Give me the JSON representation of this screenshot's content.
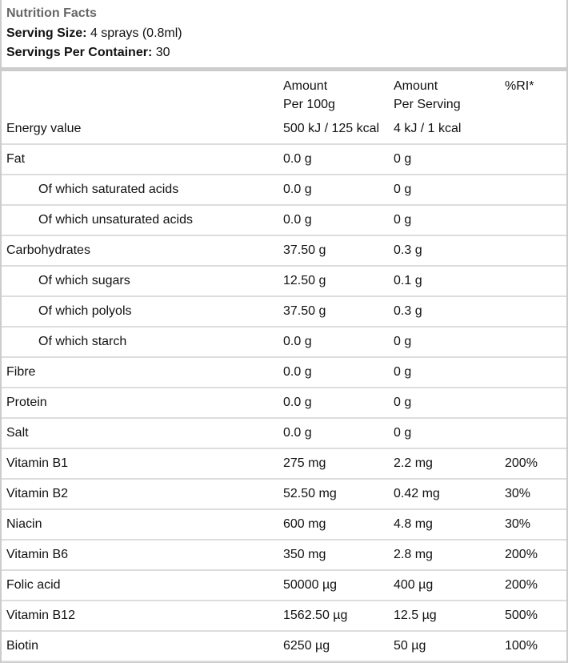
{
  "header": {
    "title": "Nutrition Facts",
    "serving_size_label": "Serving Size:",
    "serving_size": "4 sprays (0.8ml)",
    "servings_label": "Servings Per Container:",
    "servings": "30"
  },
  "table": {
    "columns": [
      [
        "Amount",
        "Per 100g"
      ],
      [
        "Amount",
        "Per Serving"
      ],
      [
        "%RI*"
      ]
    ],
    "rows": [
      {
        "label": "Energy value",
        "per_100g": "500 kJ / 125 kcal",
        "per_serving": "4 kJ / 1 kcal"
      },
      {
        "label": "Fat",
        "per_100g": "0.0 g",
        "per_serving": "0 g"
      },
      {
        "label": "Of which saturated acids",
        "per_100g": "0.0 g",
        "per_serving": "0 g",
        "indent": true
      },
      {
        "label": "Of which unsaturated acids",
        "per_100g": "0.0 g",
        "per_serving": "0 g",
        "indent": true
      },
      {
        "label": "Carbohydrates",
        "per_100g": "37.50 g",
        "per_serving": "0.3 g"
      },
      {
        "label": "Of which sugars",
        "per_100g": "12.50 g",
        "per_serving": "0.1 g",
        "indent": true
      },
      {
        "label": "Of which polyols",
        "per_100g": "37.50 g",
        "per_serving": "0.3 g",
        "indent": true
      },
      {
        "label": "Of which starch",
        "per_100g": "0.0 g",
        "per_serving": "0 g",
        "indent": true
      },
      {
        "label": "Fibre",
        "per_100g": "0.0 g",
        "per_serving": "0 g"
      },
      {
        "label": "Protein",
        "per_100g": "0.0 g",
        "per_serving": "0 g"
      },
      {
        "label": "Salt",
        "per_100g": "0.0 g",
        "per_serving": "0 g"
      },
      {
        "label": "Vitamin B1",
        "per_100g": "275 mg",
        "per_serving": "2.2 mg",
        "ri": "200%"
      },
      {
        "label": "Vitamin B2",
        "per_100g": "52.50 mg",
        "per_serving": "0.42 mg",
        "ri": "30%"
      },
      {
        "label": "Niacin",
        "per_100g": "600 mg",
        "per_serving": "4.8 mg",
        "ri": "30%"
      },
      {
        "label": "Vitamin B6",
        "per_100g": "350 mg",
        "per_serving": "2.8 mg",
        "ri": "200%"
      },
      {
        "label": "Folic acid",
        "per_100g": "50000 µg",
        "per_serving": "400 µg",
        "ri": "200%"
      },
      {
        "label": "Vitamin B12",
        "per_100g": "1562.50 µg",
        "per_serving": "12.5 µg",
        "ri": "500%"
      },
      {
        "label": "Biotin",
        "per_100g": "6250 µg",
        "per_serving": "50 µg",
        "ri": "100%"
      }
    ]
  }
}
